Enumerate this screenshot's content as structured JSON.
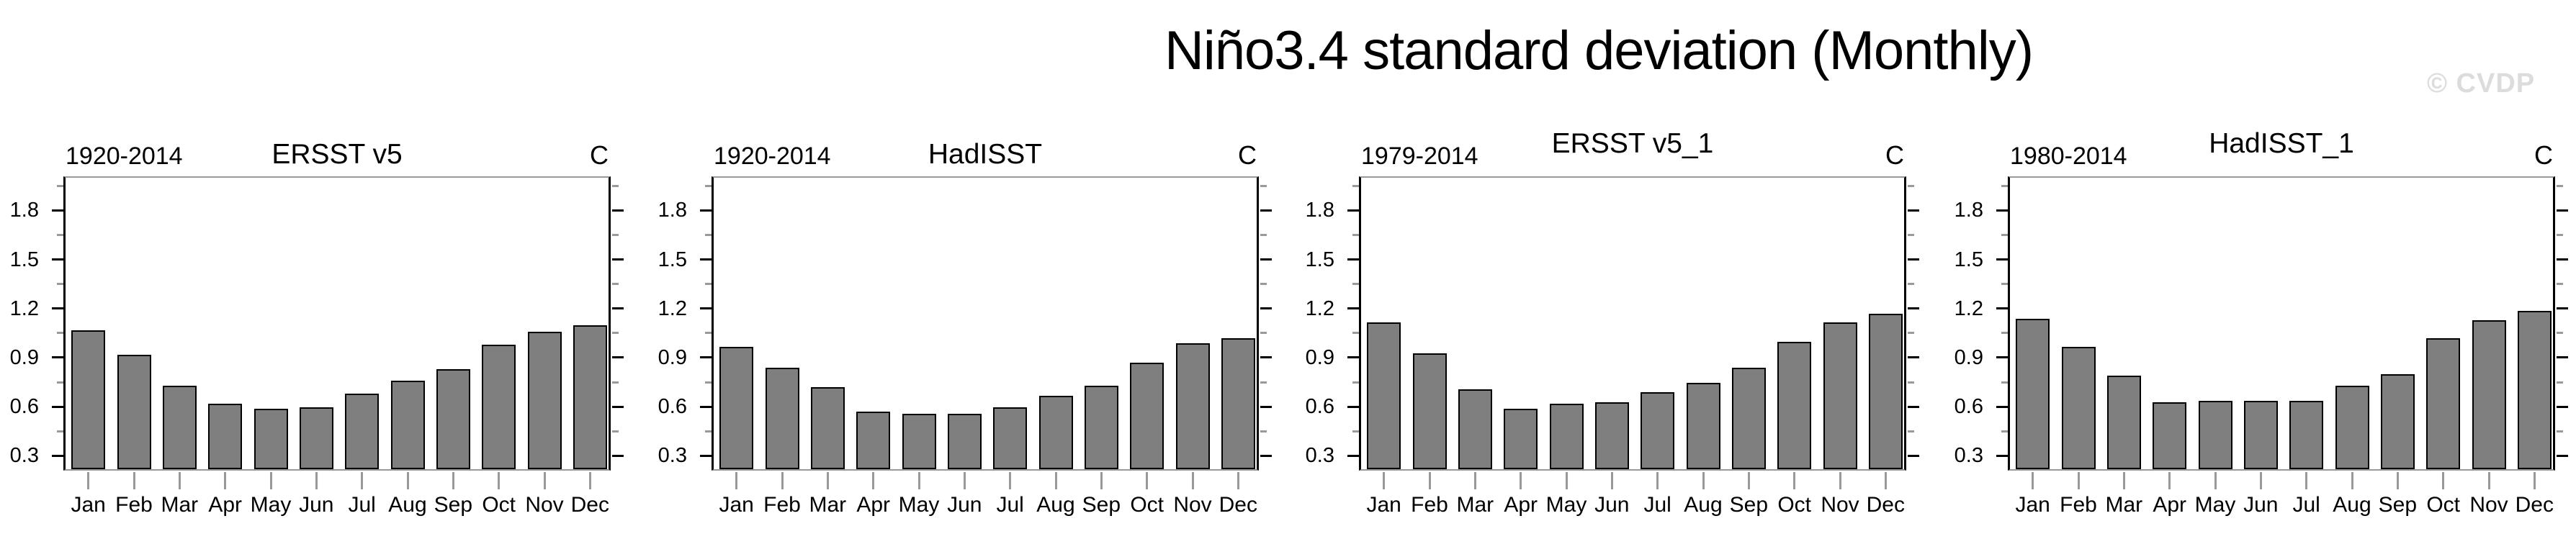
{
  "title": "Niño3.4 standard deviation (Monthly)",
  "watermark": "© CVDP",
  "colors": {
    "bar_fill": "#7f7f7f",
    "bar_outline": "#000000",
    "axis_black": "#000000",
    "frame_gray": "#999999",
    "watermark_gray": "#dcdcdc",
    "text": "#000000"
  },
  "chart_data": [
    {
      "type": "bar",
      "period": "1920-2014",
      "dataset": "ERSST v5",
      "units_label": "C",
      "categories": [
        "Jan",
        "Feb",
        "Mar",
        "Apr",
        "May",
        "Jun",
        "Jul",
        "Aug",
        "Sep",
        "Oct",
        "Nov",
        "Dec"
      ],
      "values": [
        1.05,
        0.9,
        0.71,
        0.6,
        0.57,
        0.58,
        0.66,
        0.74,
        0.81,
        0.96,
        1.04,
        1.08
      ],
      "ylim": [
        0.2,
        2.0
      ],
      "yticks": [
        0.3,
        0.6,
        0.9,
        1.2,
        1.5,
        1.8
      ],
      "ytick_labels": [
        "0.3",
        "0.6",
        "0.9",
        "1.2",
        "1.5",
        "1.8"
      ],
      "yticks_minor": [
        0.45,
        0.75,
        1.05,
        1.35,
        1.65,
        1.95
      ],
      "grid": false,
      "title_raised": false
    },
    {
      "type": "bar",
      "period": "1920-2014",
      "dataset": "HadISST",
      "units_label": "C",
      "categories": [
        "Jan",
        "Feb",
        "Mar",
        "Apr",
        "May",
        "Jun",
        "Jul",
        "Aug",
        "Sep",
        "Oct",
        "Nov",
        "Dec"
      ],
      "values": [
        0.95,
        0.82,
        0.7,
        0.55,
        0.54,
        0.54,
        0.58,
        0.65,
        0.71,
        0.85,
        0.97,
        1.0
      ],
      "ylim": [
        0.2,
        2.0
      ],
      "yticks": [
        0.3,
        0.6,
        0.9,
        1.2,
        1.5,
        1.8
      ],
      "ytick_labels": [
        "0.3",
        "0.6",
        "0.9",
        "1.2",
        "1.5",
        "1.8"
      ],
      "yticks_minor": [
        0.45,
        0.75,
        1.05,
        1.35,
        1.65,
        1.95
      ],
      "grid": false,
      "title_raised": false
    },
    {
      "type": "bar",
      "period": "1979-2014",
      "dataset": "ERSST v5_1",
      "units_label": "C",
      "categories": [
        "Jan",
        "Feb",
        "Mar",
        "Apr",
        "May",
        "Jun",
        "Jul",
        "Aug",
        "Sep",
        "Oct",
        "Nov",
        "Dec"
      ],
      "values": [
        1.1,
        0.91,
        0.69,
        0.57,
        0.6,
        0.61,
        0.67,
        0.73,
        0.82,
        0.98,
        1.1,
        1.15
      ],
      "ylim": [
        0.2,
        2.0
      ],
      "yticks": [
        0.3,
        0.6,
        0.9,
        1.2,
        1.5,
        1.8
      ],
      "ytick_labels": [
        "0.3",
        "0.6",
        "0.9",
        "1.2",
        "1.5",
        "1.8"
      ],
      "yticks_minor": [
        0.45,
        0.75,
        1.05,
        1.35,
        1.65,
        1.95
      ],
      "grid": false,
      "title_raised": true
    },
    {
      "type": "bar",
      "period": "1980-2014",
      "dataset": "HadISST_1",
      "units_label": "C",
      "categories": [
        "Jan",
        "Feb",
        "Mar",
        "Apr",
        "May",
        "Jun",
        "Jul",
        "Aug",
        "Sep",
        "Oct",
        "Nov",
        "Dec"
      ],
      "values": [
        1.12,
        0.95,
        0.77,
        0.61,
        0.62,
        0.62,
        0.62,
        0.71,
        0.78,
        1.0,
        1.11,
        1.17
      ],
      "ylim": [
        0.2,
        2.0
      ],
      "yticks": [
        0.3,
        0.6,
        0.9,
        1.2,
        1.5,
        1.8
      ],
      "ytick_labels": [
        "0.3",
        "0.6",
        "0.9",
        "1.2",
        "1.5",
        "1.8"
      ],
      "yticks_minor": [
        0.45,
        0.75,
        1.05,
        1.35,
        1.65,
        1.95
      ],
      "grid": false,
      "title_raised": true
    }
  ]
}
